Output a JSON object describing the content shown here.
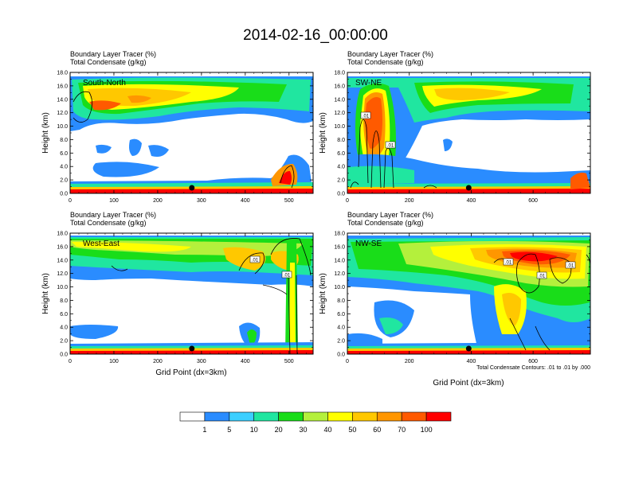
{
  "title": "2014-02-16_00:00:00",
  "chart_data": [
    {
      "type": "heatmap",
      "subtitle_line1": "Boundary Layer Tracer   (%)",
      "subtitle_line2": "Total Condensate   (g/kg)",
      "panel_label": "South-North",
      "ylabel": "Height (km)",
      "xlabel": "",
      "xlim": [
        0,
        555
      ],
      "ylim": [
        0,
        18
      ],
      "xticks": [
        "0",
        "100",
        "200",
        "300",
        "400",
        "500"
      ],
      "xtick_values": [
        0,
        100,
        200,
        300,
        400,
        500
      ],
      "yticks": [
        "0.0",
        "2.0",
        "4.0",
        "6.0",
        "8.0",
        "10.0",
        "12.0",
        "14.0",
        "16.0",
        "18.0"
      ],
      "marker_x": 278,
      "contour_labels": []
    },
    {
      "type": "heatmap",
      "subtitle_line1": "Boundary Layer Tracer   (%)",
      "subtitle_line2": "Total Condensate   (g/kg)",
      "panel_label": "SW-NE",
      "ylabel": "Height (km)",
      "xlabel": "",
      "xlim": [
        0,
        785
      ],
      "ylim": [
        0,
        18
      ],
      "xticks": [
        "0",
        "200",
        "400",
        "600"
      ],
      "xtick_values": [
        0,
        200,
        400,
        600
      ],
      "yticks": [
        "0.0",
        "2.0",
        "4.0",
        "6.0",
        "8.0",
        "10.0",
        "12.0",
        "14.0",
        "16.0",
        "18.0"
      ],
      "marker_x": 392,
      "contour_labels": [
        ".01",
        ".01"
      ]
    },
    {
      "type": "heatmap",
      "subtitle_line1": "Boundary Layer Tracer   (%)",
      "subtitle_line2": "Total Condensate   (g/kg)",
      "panel_label": "West-East",
      "ylabel": "Height (km)",
      "xlabel": "Grid Point (dx=3km)",
      "xlim": [
        0,
        555
      ],
      "ylim": [
        0,
        18
      ],
      "xticks": [
        "0",
        "100",
        "200",
        "300",
        "400",
        "500"
      ],
      "xtick_values": [
        0,
        100,
        200,
        300,
        400,
        500
      ],
      "yticks": [
        "0.0",
        "2.0",
        "4.0",
        "6.0",
        "8.0",
        "10.0",
        "12.0",
        "14.0",
        "16.0",
        "18.0"
      ],
      "marker_x": 278,
      "contour_labels": [
        ".01",
        ".01"
      ]
    },
    {
      "type": "heatmap",
      "subtitle_line1": "Boundary Layer Tracer   (%)",
      "subtitle_line2": "Total Condensate   (g/kg)",
      "panel_label": "NW-SE",
      "ylabel": "Height (km)",
      "xlabel": "Grid Point (dx=3km)",
      "xlim": [
        0,
        785
      ],
      "ylim": [
        0,
        18
      ],
      "xticks": [
        "0",
        "200",
        "400",
        "600"
      ],
      "xtick_values": [
        0,
        200,
        400,
        600
      ],
      "yticks": [
        "0.0",
        "2.0",
        "4.0",
        "6.0",
        "8.0",
        "10.0",
        "12.0",
        "14.0",
        "16.0",
        "18.0"
      ],
      "marker_x": 392,
      "contour_labels": [
        ".01",
        ".01",
        ".01"
      ],
      "footnote": "Total Condensate Contours: .01 to .01 by .000"
    }
  ],
  "colorbar": {
    "labels": [
      "1",
      "5",
      "10",
      "20",
      "30",
      "40",
      "50",
      "60",
      "70",
      "100"
    ],
    "colors": [
      "#ffffff",
      "#2a8cff",
      "#3ccfff",
      "#20e6a0",
      "#19dd19",
      "#b4f03c",
      "#ffff00",
      "#ffc800",
      "#ff9600",
      "#ff5a00",
      "#ff0000"
    ]
  }
}
